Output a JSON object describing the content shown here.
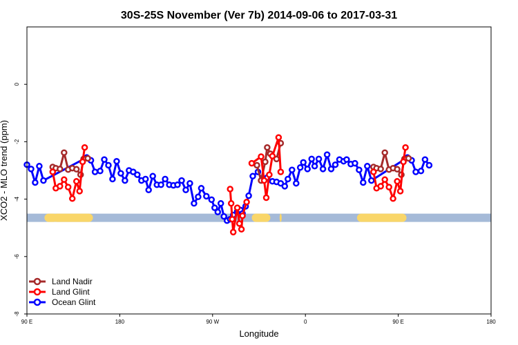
{
  "chart_data": {
    "type": "line",
    "title": "30S-25S November (Ver 7b)   2014-09-06 to 2017-03-31",
    "xlabel": "Longitude",
    "ylabel": "XCO2 - MLO trend (ppm)",
    "xlim": [
      90,
      540
    ],
    "ylim": [
      -8,
      2
    ],
    "x_ticks": [
      {
        "value": 90,
        "label": "90 E"
      },
      {
        "value": 180,
        "label": "180"
      },
      {
        "value": 270,
        "label": "90 W"
      },
      {
        "value": 360,
        "label": "0"
      },
      {
        "value": 450,
        "label": "90 E"
      },
      {
        "value": 540,
        "label": "180"
      }
    ],
    "y_ticks": [
      {
        "value": 0,
        "label": "0"
      },
      {
        "value": -2,
        "label": "-2"
      },
      {
        "value": -4,
        "label": "-4"
      },
      {
        "value": -6,
        "label": "-6"
      },
      {
        "value": -8,
        "label": "-8"
      }
    ],
    "land_band": {
      "y": -4.65,
      "base_color": "#a5bad8",
      "land_color": "#f9d669",
      "land_ranges": [
        [
          115,
          154
        ],
        [
          107,
          120
        ],
        [
          308,
          326
        ],
        [
          335,
          337
        ],
        [
          410,
          458
        ]
      ]
    },
    "series": [
      {
        "name": "Land Nadir",
        "color": "#a52a2a",
        "segments": [
          [
            [
              115,
              -2.88
            ],
            [
              118,
              -2.92
            ],
            [
              122,
              -2.95
            ],
            [
              126,
              -2.38
            ],
            [
              130,
              -2.97
            ],
            [
              134,
              -2.92
            ],
            [
              138,
              -2.96
            ],
            [
              142,
              -3.15
            ],
            [
              145,
              -2.6
            ],
            [
              149,
              -2.58
            ]
          ],
          [
            [
              313,
              -2.82
            ],
            [
              317,
              -3.35
            ],
            [
              321,
              -2.7
            ],
            [
              323,
              -2.2
            ],
            [
              326,
              -2.42
            ],
            [
              332,
              -2.6
            ],
            [
              336,
              -2.05
            ]
          ],
          [
            [
              426,
              -2.88
            ],
            [
              429,
              -2.92
            ],
            [
              433,
              -2.95
            ],
            [
              437,
              -2.38
            ],
            [
              441,
              -2.97
            ],
            [
              445,
              -2.92
            ],
            [
              449,
              -2.96
            ],
            [
              453,
              -3.15
            ],
            [
              456,
              -2.6
            ],
            [
              460,
              -2.58
            ]
          ]
        ]
      },
      {
        "name": "Land Glint",
        "color": "#ff0000",
        "segments": [
          [
            [
              115,
              -3.05
            ],
            [
              118,
              -3.62
            ],
            [
              122,
              -3.55
            ],
            [
              126,
              -3.32
            ],
            [
              130,
              -3.58
            ],
            [
              134,
              -3.98
            ],
            [
              138,
              -3.38
            ],
            [
              141,
              -3.72
            ],
            [
              144,
              -2.7
            ],
            [
              146,
              -2.2
            ]
          ],
          [
            [
              287,
              -3.65
            ],
            [
              288,
              -4.15
            ],
            [
              289,
              -4.7
            ],
            [
              290,
              -5.15
            ],
            [
              294,
              -4.3
            ],
            [
              296,
              -4.85
            ],
            [
              298,
              -5.05
            ],
            [
              299,
              -4.58
            ],
            [
              303,
              -4.1
            ]
          ],
          [
            [
              308,
              -2.75
            ],
            [
              317,
              -2.52
            ],
            [
              320,
              -3.35
            ],
            [
              322,
              -3.95
            ],
            [
              325,
              -3.15
            ],
            [
              328,
              -2.5
            ],
            [
              334,
              -1.85
            ],
            [
              336,
              -3.05
            ]
          ],
          [
            [
              426,
              -3.05
            ],
            [
              429,
              -3.62
            ],
            [
              433,
              -3.55
            ],
            [
              437,
              -3.32
            ],
            [
              441,
              -3.58
            ],
            [
              445,
              -3.98
            ],
            [
              449,
              -3.38
            ],
            [
              452,
              -3.72
            ],
            [
              455,
              -2.7
            ],
            [
              457,
              -2.2
            ]
          ]
        ]
      },
      {
        "name": "Ocean Glint",
        "color": "#0000ff",
        "segments": [
          [
            [
              90,
              -2.8
            ],
            [
              94,
              -2.95
            ],
            [
              98,
              -3.42
            ],
            [
              102,
              -2.85
            ],
            [
              106,
              -3.35
            ],
            [
              148,
              -2.55
            ],
            [
              152,
              -2.65
            ],
            [
              156,
              -3.05
            ],
            [
              161,
              -3.02
            ],
            [
              165,
              -2.62
            ],
            [
              169,
              -2.82
            ],
            [
              173,
              -3.3
            ],
            [
              177,
              -2.68
            ],
            [
              181,
              -3.1
            ],
            [
              185,
              -3.35
            ],
            [
              189,
              -3.0
            ],
            [
              193,
              -3.05
            ],
            [
              197,
              -3.15
            ],
            [
              201,
              -3.35
            ],
            [
              205,
              -3.3
            ],
            [
              208,
              -3.68
            ],
            [
              212,
              -3.2
            ],
            [
              216,
              -3.5
            ],
            [
              220,
              -3.5
            ],
            [
              224,
              -3.3
            ],
            [
              228,
              -3.5
            ],
            [
              232,
              -3.52
            ],
            [
              236,
              -3.5
            ],
            [
              240,
              -3.35
            ],
            [
              244,
              -3.68
            ],
            [
              248,
              -3.45
            ],
            [
              252,
              -4.15
            ],
            [
              256,
              -3.92
            ],
            [
              259,
              -3.62
            ],
            [
              264,
              -3.9
            ],
            [
              269,
              -4.02
            ],
            [
              272,
              -4.3
            ],
            [
              275,
              -4.45
            ],
            [
              278,
              -4.15
            ],
            [
              281,
              -4.6
            ],
            [
              284,
              -4.75
            ],
            [
              287,
              -4.7
            ],
            [
              290,
              -4.55
            ],
            [
              294,
              -4.42
            ],
            [
              297,
              -4.38
            ],
            [
              299,
              -4.5
            ],
            [
              302,
              -4.25
            ],
            [
              305,
              -3.88
            ],
            [
              309,
              -3.2
            ],
            [
              314,
              -3.05
            ],
            [
              318,
              -3.32
            ],
            [
              323,
              -3.25
            ],
            [
              328,
              -3.38
            ],
            [
              332,
              -3.4
            ],
            [
              336,
              -3.45
            ],
            [
              340,
              -3.55
            ],
            [
              343,
              -3.3
            ],
            [
              347,
              -2.98
            ],
            [
              351,
              -3.45
            ],
            [
              355,
              -2.9
            ],
            [
              358,
              -2.72
            ],
            [
              362,
              -2.95
            ],
            [
              366,
              -2.6
            ],
            [
              369,
              -2.85
            ],
            [
              373,
              -2.6
            ],
            [
              377,
              -2.95
            ],
            [
              381,
              -2.45
            ],
            [
              385,
              -2.95
            ],
            [
              389,
              -2.8
            ],
            [
              393,
              -2.62
            ],
            [
              397,
              -2.68
            ],
            [
              400,
              -2.62
            ],
            [
              404,
              -2.78
            ],
            [
              408,
              -2.75
            ],
            [
              412,
              -2.98
            ],
            [
              416,
              -3.42
            ],
            [
              420,
              -2.85
            ],
            [
              424,
              -3.35
            ],
            [
              459,
              -2.55
            ],
            [
              463,
              -2.65
            ],
            [
              467,
              -3.05
            ],
            [
              472,
              -3.02
            ],
            [
              476,
              -2.62
            ],
            [
              480,
              -2.82
            ]
          ]
        ]
      }
    ],
    "legend": {
      "position": "bottom-left",
      "entries": [
        "Land Nadir",
        "Land Glint",
        "Ocean Glint"
      ]
    },
    "grid": false
  }
}
